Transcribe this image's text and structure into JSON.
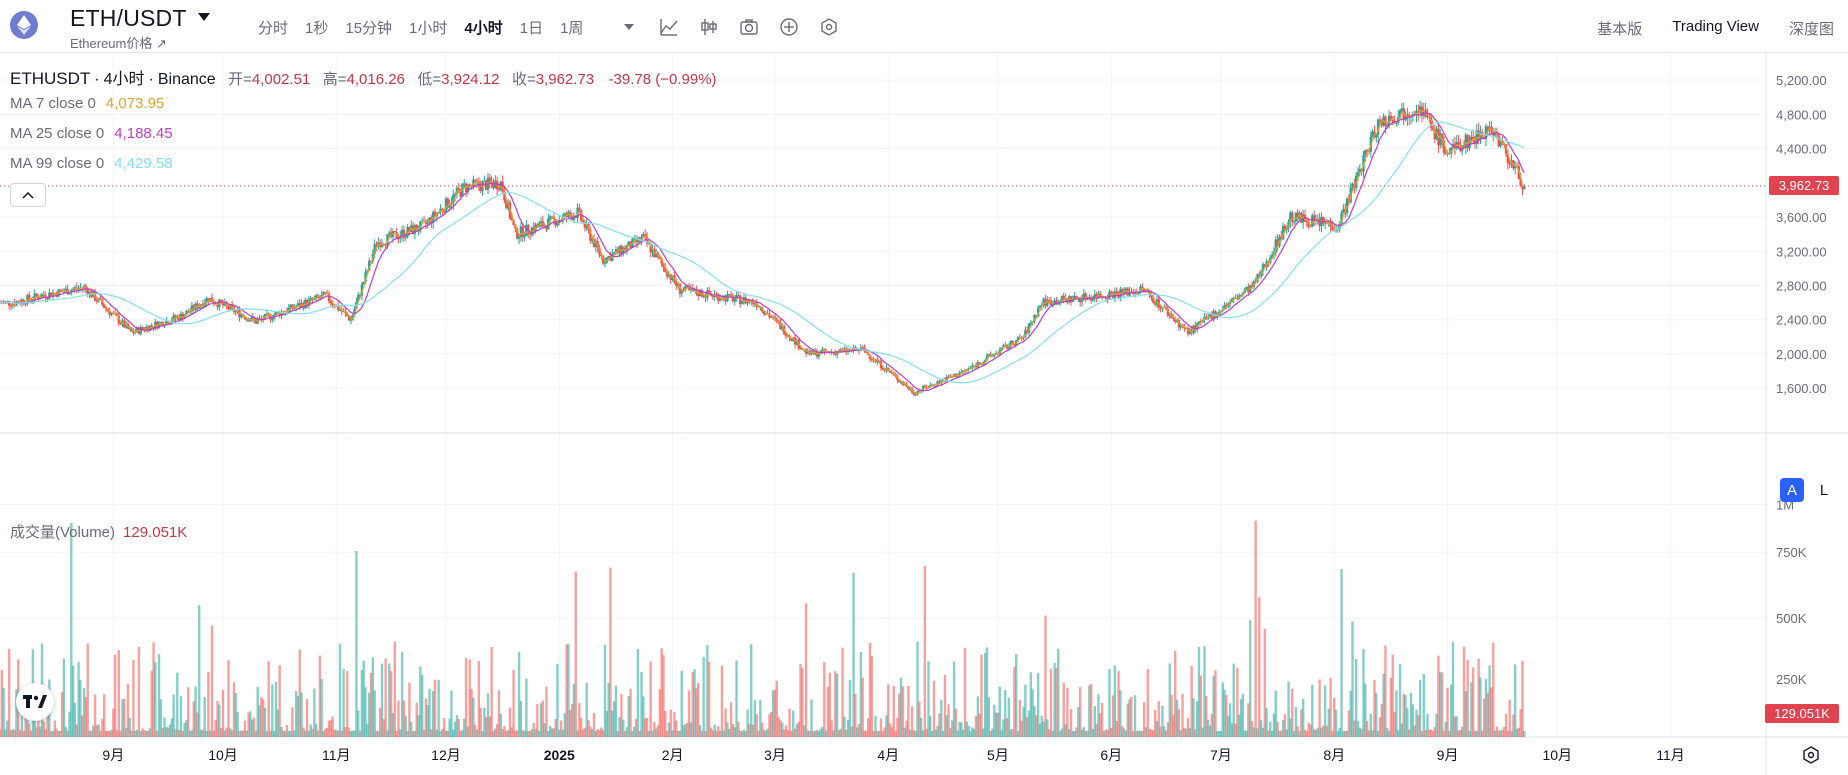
{
  "header": {
    "title": "ETH/USDT",
    "subtitle": "Ethereum价格 ↗",
    "timeframes": [
      {
        "label": "分时",
        "active": false
      },
      {
        "label": "1秒",
        "active": false
      },
      {
        "label": "15分钟",
        "active": false
      },
      {
        "label": "1小时",
        "active": false
      },
      {
        "label": "4小时",
        "active": true
      },
      {
        "label": "1日",
        "active": false
      },
      {
        "label": "1周",
        "active": false
      }
    ],
    "tools": [
      "chevron-down-icon",
      "indicators-icon",
      "candle-type-icon",
      "camera-icon",
      "add-circle-icon",
      "settings-hex-icon"
    ],
    "view_modes": [
      {
        "label": "基本版",
        "active": false
      },
      {
        "label": "Trading View",
        "active": true
      },
      {
        "label": "深度图",
        "active": false
      }
    ]
  },
  "legend": {
    "symbol": "ETHUSDT",
    "interval": "4小时",
    "exchange": "Binance",
    "open_label": "开=",
    "open": "4,002.51",
    "high_label": "高=",
    "high": "4,016.26",
    "low_label": "低=",
    "low": "3,924.12",
    "close_label": "收=",
    "close": "3,962.73",
    "change": "-39.78 (−0.99%)"
  },
  "moving_averages": [
    {
      "label": "MA 7 close 0",
      "value": "4,073.95",
      "color": "#e3a32b"
    },
    {
      "label": "MA 25 close 0",
      "value": "4,188.45",
      "color": "#c03ec4"
    },
    {
      "label": "MA 99 close 0",
      "value": "4,429.58",
      "color": "#84e0ec"
    }
  ],
  "volume_legend": {
    "label": "成交量(Volume)",
    "value": "129.051K"
  },
  "price_axis": [
    "5,200.00",
    "4,800.00",
    "4,400.00",
    "3,600.00",
    "3,200.00",
    "2,800.00",
    "2,400.00",
    "2,000.00",
    "1,600.00"
  ],
  "current_price_tag": "3,962.73",
  "volume_axis": [
    "1M",
    "750K",
    "500K",
    "250K"
  ],
  "current_volume_tag": "129.051K",
  "time_axis": [
    "9月",
    "10月",
    "11月",
    "12月",
    "2025",
    "2月",
    "3月",
    "4月",
    "5月",
    "6月",
    "7月",
    "8月",
    "9月",
    "10月",
    "11月"
  ],
  "scale_buttons": {
    "auto": "A",
    "log": "L"
  },
  "colors": {
    "up": "#26a69a",
    "down": "#ef5350",
    "price_tag": "#e0424f",
    "accent": "#2962ff"
  },
  "chart_data": {
    "type": "candlestick",
    "symbol": "ETHUSDT",
    "interval": "4小时",
    "series_points": [
      {
        "date": "2024-08-05",
        "close": 2600
      },
      {
        "date": "2024-08-12",
        "close": 2680
      },
      {
        "date": "2024-08-24",
        "close": 2780
      },
      {
        "date": "2024-09-06",
        "close": 2250
      },
      {
        "date": "2024-09-20",
        "close": 2450
      },
      {
        "date": "2024-09-27",
        "close": 2650
      },
      {
        "date": "2024-10-10",
        "close": 2380
      },
      {
        "date": "2024-10-29",
        "close": 2680
      },
      {
        "date": "2024-11-05",
        "close": 2400
      },
      {
        "date": "2024-11-12",
        "close": 3300
      },
      {
        "date": "2024-11-25",
        "close": 3500
      },
      {
        "date": "2024-12-06",
        "close": 3950
      },
      {
        "date": "2024-12-16",
        "close": 4000
      },
      {
        "date": "2024-12-20",
        "close": 3400
      },
      {
        "date": "2025-01-06",
        "close": 3650
      },
      {
        "date": "2025-01-13",
        "close": 3100
      },
      {
        "date": "2025-01-24",
        "close": 3350
      },
      {
        "date": "2025-02-03",
        "close": 2750
      },
      {
        "date": "2025-02-24",
        "close": 2600
      },
      {
        "date": "2025-03-10",
        "close": 2000
      },
      {
        "date": "2025-03-25",
        "close": 2050
      },
      {
        "date": "2025-04-08",
        "close": 1550
      },
      {
        "date": "2025-04-22",
        "close": 1800
      },
      {
        "date": "2025-05-08",
        "close": 2200
      },
      {
        "date": "2025-05-13",
        "close": 2600
      },
      {
        "date": "2025-06-10",
        "close": 2750
      },
      {
        "date": "2025-06-22",
        "close": 2250
      },
      {
        "date": "2025-07-10",
        "close": 2800
      },
      {
        "date": "2025-07-20",
        "close": 3600
      },
      {
        "date": "2025-08-02",
        "close": 3500
      },
      {
        "date": "2025-08-13",
        "close": 4700
      },
      {
        "date": "2025-08-24",
        "close": 4900
      },
      {
        "date": "2025-09-01",
        "close": 4350
      },
      {
        "date": "2025-09-13",
        "close": 4650
      },
      {
        "date": "2025-09-22",
        "close": 3962.73
      }
    ],
    "volume_max_label": "1M",
    "volume_last": "129.051K",
    "y_range": [
      1100,
      5400
    ],
    "grid": true
  }
}
